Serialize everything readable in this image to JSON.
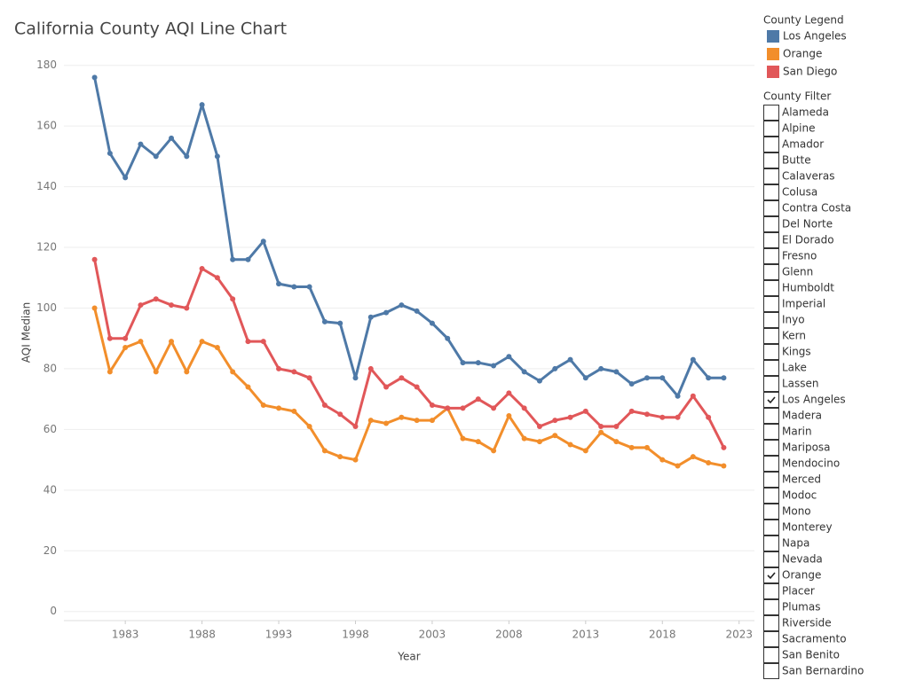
{
  "chart_data": {
    "type": "line",
    "title": "California County AQI Line Chart",
    "x_label": "Year",
    "y_label": "AQI Median",
    "x": [
      1981,
      1982,
      1983,
      1984,
      1985,
      1986,
      1987,
      1988,
      1989,
      1990,
      1991,
      1992,
      1993,
      1994,
      1995,
      1996,
      1997,
      1998,
      1999,
      2000,
      2001,
      2002,
      2003,
      2004,
      2005,
      2006,
      2007,
      2008,
      2009,
      2010,
      2011,
      2012,
      2013,
      2014,
      2015,
      2016,
      2017,
      2018,
      2019,
      2020,
      2021,
      2022
    ],
    "series": [
      {
        "name": "Los Angeles",
        "color": "#4e79a7",
        "values": [
          176,
          151,
          143,
          154,
          150,
          156,
          150,
          167,
          150,
          116,
          116,
          122,
          108,
          107,
          107,
          95.5,
          95,
          77,
          97,
          98.5,
          101,
          99,
          95,
          90,
          82,
          82,
          81,
          84,
          79,
          76,
          80,
          83,
          77,
          80,
          79,
          75,
          77,
          77,
          71,
          83,
          77,
          77
        ]
      },
      {
        "name": "Orange",
        "color": "#f28e2b",
        "values": [
          100,
          79,
          87,
          89,
          79,
          89,
          79,
          89,
          87,
          79,
          74,
          68,
          67,
          66,
          61,
          53,
          51,
          50,
          63,
          62,
          64,
          63,
          63,
          67,
          57,
          56,
          53,
          64.5,
          57,
          56,
          58,
          55,
          53,
          59,
          56,
          54,
          54,
          50,
          48,
          51,
          49,
          48
        ]
      },
      {
        "name": "San Diego",
        "color": "#e15759",
        "values": [
          116,
          90,
          90,
          101,
          103,
          101,
          100,
          113,
          110,
          103,
          89,
          89,
          80,
          79,
          77,
          68,
          65,
          61,
          80,
          74,
          77,
          74,
          68,
          67,
          67,
          70,
          67,
          72,
          67,
          61,
          63,
          64,
          66,
          61,
          61,
          66,
          65,
          64,
          64,
          71,
          64,
          54
        ]
      }
    ],
    "xlim": [
      1979,
      2024
    ],
    "xticks": [
      1983,
      1988,
      1993,
      1998,
      2003,
      2008,
      2013,
      2018,
      2023
    ],
    "ylim": [
      -3,
      184
    ],
    "yticks": [
      0,
      20,
      40,
      60,
      80,
      100,
      120,
      140,
      160,
      180
    ],
    "grid": true
  },
  "legend": {
    "title": "County Legend"
  },
  "filter": {
    "title": "County Filter",
    "items": [
      {
        "label": "Alameda",
        "checked": false
      },
      {
        "label": "Alpine",
        "checked": false
      },
      {
        "label": "Amador",
        "checked": false
      },
      {
        "label": "Butte",
        "checked": false
      },
      {
        "label": "Calaveras",
        "checked": false
      },
      {
        "label": "Colusa",
        "checked": false
      },
      {
        "label": "Contra Costa",
        "checked": false
      },
      {
        "label": "Del Norte",
        "checked": false
      },
      {
        "label": "El Dorado",
        "checked": false
      },
      {
        "label": "Fresno",
        "checked": false
      },
      {
        "label": "Glenn",
        "checked": false
      },
      {
        "label": "Humboldt",
        "checked": false
      },
      {
        "label": "Imperial",
        "checked": false
      },
      {
        "label": "Inyo",
        "checked": false
      },
      {
        "label": "Kern",
        "checked": false
      },
      {
        "label": "Kings",
        "checked": false
      },
      {
        "label": "Lake",
        "checked": false
      },
      {
        "label": "Lassen",
        "checked": false
      },
      {
        "label": "Los Angeles",
        "checked": true
      },
      {
        "label": "Madera",
        "checked": false
      },
      {
        "label": "Marin",
        "checked": false
      },
      {
        "label": "Mariposa",
        "checked": false
      },
      {
        "label": "Mendocino",
        "checked": false
      },
      {
        "label": "Merced",
        "checked": false
      },
      {
        "label": "Modoc",
        "checked": false
      },
      {
        "label": "Mono",
        "checked": false
      },
      {
        "label": "Monterey",
        "checked": false
      },
      {
        "label": "Napa",
        "checked": false
      },
      {
        "label": "Nevada",
        "checked": false
      },
      {
        "label": "Orange",
        "checked": true
      },
      {
        "label": "Placer",
        "checked": false
      },
      {
        "label": "Plumas",
        "checked": false
      },
      {
        "label": "Riverside",
        "checked": false
      },
      {
        "label": "Sacramento",
        "checked": false
      },
      {
        "label": "San Benito",
        "checked": false
      },
      {
        "label": "San Bernardino",
        "checked": false
      }
    ]
  }
}
